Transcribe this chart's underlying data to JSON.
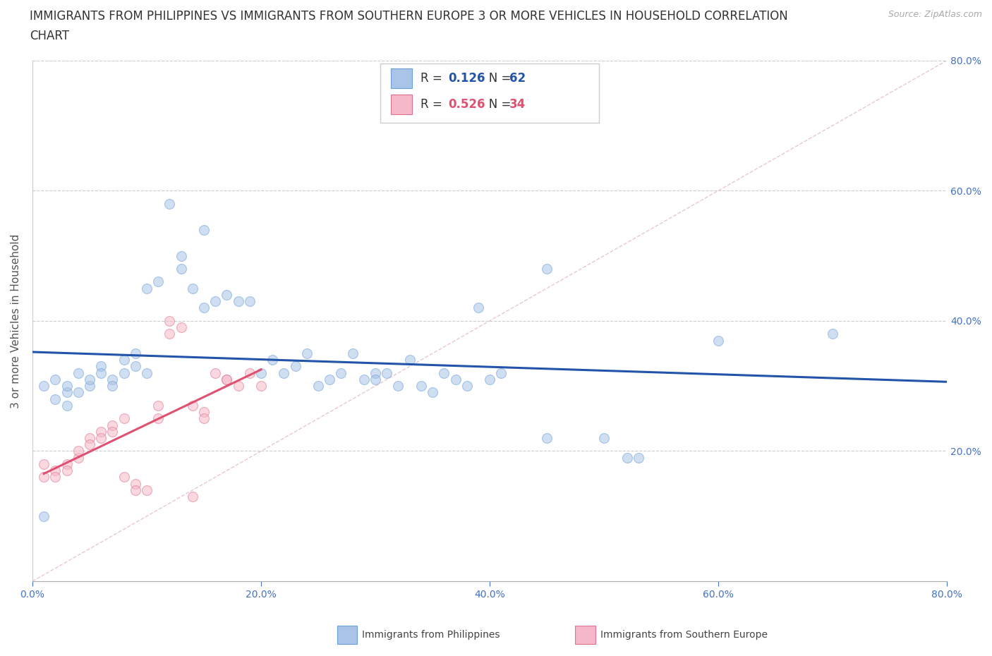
{
  "title_line1": "IMMIGRANTS FROM PHILIPPINES VS IMMIGRANTS FROM SOUTHERN EUROPE 3 OR MORE VEHICLES IN HOUSEHOLD CORRELATION",
  "title_line2": "CHART",
  "source": "Source: ZipAtlas.com",
  "ylabel": "3 or more Vehicles in Household",
  "xlim": [
    0.0,
    0.8
  ],
  "ylim": [
    0.0,
    0.8
  ],
  "xticks": [
    0.0,
    0.2,
    0.4,
    0.6,
    0.8
  ],
  "yticks": [
    0.2,
    0.4,
    0.6,
    0.8
  ],
  "xtick_labels": [
    "0.0%",
    "20.0%",
    "40.0%",
    "60.0%",
    "80.0%"
  ],
  "ytick_labels": [
    "20.0%",
    "40.0%",
    "60.0%",
    "80.0%"
  ],
  "grid_color": "#cccccc",
  "background_color": "#ffffff",
  "philippines_color": "#aac4e8",
  "philippines_edge_color": "#6a9fd8",
  "philippines_line_color": "#2255aa",
  "southern_europe_color": "#f5b8c8",
  "southern_europe_edge_color": "#e07090",
  "southern_europe_line_color": "#e05070",
  "diagonal_color": "#e8c8d0",
  "R_philippines": 0.126,
  "N_philippines": 62,
  "R_southern_europe": 0.526,
  "N_southern_europe": 34,
  "legend_label_philippines": "Immigrants from Philippines",
  "legend_label_southern_europe": "Immigrants from Southern Europe",
  "philippines_x": [
    0.01,
    0.02,
    0.02,
    0.03,
    0.03,
    0.03,
    0.04,
    0.04,
    0.05,
    0.05,
    0.06,
    0.06,
    0.07,
    0.07,
    0.08,
    0.08,
    0.09,
    0.09,
    0.1,
    0.1,
    0.11,
    0.12,
    0.13,
    0.13,
    0.14,
    0.15,
    0.15,
    0.16,
    0.17,
    0.18,
    0.19,
    0.2,
    0.21,
    0.22,
    0.23,
    0.24,
    0.25,
    0.26,
    0.27,
    0.28,
    0.29,
    0.3,
    0.3,
    0.31,
    0.32,
    0.33,
    0.34,
    0.35,
    0.36,
    0.37,
    0.38,
    0.39,
    0.4,
    0.41,
    0.45,
    0.45,
    0.5,
    0.52,
    0.53,
    0.6,
    0.7,
    0.01
  ],
  "philippines_y": [
    0.3,
    0.28,
    0.31,
    0.27,
    0.29,
    0.3,
    0.32,
    0.29,
    0.3,
    0.31,
    0.33,
    0.32,
    0.31,
    0.3,
    0.34,
    0.32,
    0.35,
    0.33,
    0.45,
    0.32,
    0.46,
    0.58,
    0.48,
    0.5,
    0.45,
    0.54,
    0.42,
    0.43,
    0.44,
    0.43,
    0.43,
    0.32,
    0.34,
    0.32,
    0.33,
    0.35,
    0.3,
    0.31,
    0.32,
    0.35,
    0.31,
    0.32,
    0.31,
    0.32,
    0.3,
    0.34,
    0.3,
    0.29,
    0.32,
    0.31,
    0.3,
    0.42,
    0.31,
    0.32,
    0.22,
    0.48,
    0.22,
    0.19,
    0.19,
    0.37,
    0.38,
    0.1
  ],
  "southern_europe_x": [
    0.01,
    0.01,
    0.02,
    0.02,
    0.03,
    0.03,
    0.04,
    0.04,
    0.05,
    0.05,
    0.06,
    0.06,
    0.07,
    0.07,
    0.08,
    0.08,
    0.09,
    0.09,
    0.1,
    0.11,
    0.11,
    0.12,
    0.12,
    0.13,
    0.14,
    0.14,
    0.15,
    0.15,
    0.16,
    0.17,
    0.17,
    0.18,
    0.19,
    0.2
  ],
  "southern_europe_y": [
    0.18,
    0.16,
    0.17,
    0.16,
    0.18,
    0.17,
    0.19,
    0.2,
    0.22,
    0.21,
    0.23,
    0.22,
    0.24,
    0.23,
    0.25,
    0.16,
    0.15,
    0.14,
    0.14,
    0.27,
    0.25,
    0.38,
    0.4,
    0.39,
    0.27,
    0.13,
    0.26,
    0.25,
    0.32,
    0.31,
    0.31,
    0.3,
    0.32,
    0.3
  ],
  "marker_size": 100,
  "marker_alpha": 0.55,
  "title_fontsize": 12,
  "axis_label_fontsize": 11,
  "tick_fontsize": 10,
  "legend_fontsize": 12,
  "source_fontsize": 9,
  "title_color": "#333333",
  "tick_color": "#4472c4",
  "ylabel_color": "#555555",
  "ytick_right_color": "#4472c4"
}
